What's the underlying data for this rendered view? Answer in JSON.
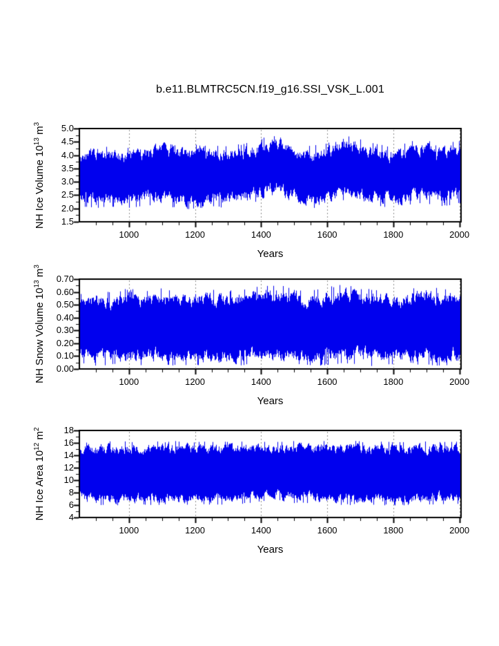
{
  "title": "b.e11.BLMTRC5CN.f19_g16.SSI_VSK_L.001",
  "background": "#ffffff",
  "series_color": "#0000ee",
  "grid_color": "#8a8a8a",
  "chart_data": [
    {
      "type": "line",
      "name": "nh-ice-volume",
      "ylabel": "NH Ice Volume 10^13 m^3",
      "ylabel_parts": {
        "base1": "NH Ice Volume 10",
        "sup1": "13",
        "base2": " m",
        "sup2": "3"
      },
      "xlabel": "Years",
      "xlim": [
        850,
        2005
      ],
      "ylim": [
        1.5,
        5.0
      ],
      "xticks": [
        "1000",
        "1200",
        "1400",
        "1600",
        "1800",
        "2000"
      ],
      "yticks": [
        "1.5",
        "2.0",
        "2.5",
        "3.0",
        "3.5",
        "4.0",
        "4.5",
        "5.0"
      ],
      "x_minor_step": 50,
      "y_minor_step": 0.25,
      "grid": "vertical-dashed",
      "envelope_x_min_max": [
        [
          850,
          2.05,
          4.35
        ],
        [
          900,
          2.0,
          4.45
        ],
        [
          950,
          2.05,
          4.3
        ],
        [
          1000,
          2.0,
          4.3
        ],
        [
          1050,
          2.1,
          4.4
        ],
        [
          1100,
          2.1,
          4.55
        ],
        [
          1150,
          2.0,
          4.35
        ],
        [
          1200,
          1.95,
          4.4
        ],
        [
          1250,
          2.05,
          4.4
        ],
        [
          1300,
          2.0,
          4.35
        ],
        [
          1350,
          2.1,
          4.45
        ],
        [
          1400,
          2.3,
          4.6
        ],
        [
          1440,
          2.5,
          4.95
        ],
        [
          1470,
          2.3,
          4.7
        ],
        [
          1500,
          2.1,
          4.4
        ],
        [
          1550,
          2.0,
          4.35
        ],
        [
          1600,
          2.0,
          4.45
        ],
        [
          1640,
          2.3,
          4.8
        ],
        [
          1680,
          2.25,
          4.7
        ],
        [
          1720,
          2.1,
          4.5
        ],
        [
          1760,
          2.05,
          4.4
        ],
        [
          1800,
          2.0,
          4.35
        ],
        [
          1850,
          2.1,
          4.5
        ],
        [
          1890,
          2.2,
          4.7
        ],
        [
          1930,
          2.05,
          4.4
        ],
        [
          1970,
          2.1,
          4.5
        ],
        [
          2005,
          2.2,
          4.55
        ]
      ]
    },
    {
      "type": "line",
      "name": "nh-snow-volume",
      "ylabel": "NH Snow Volume 10^13 m^3",
      "ylabel_parts": {
        "base1": "NH Snow Volume 10",
        "sup1": "13",
        "base2": " m",
        "sup2": "3"
      },
      "xlabel": "Years",
      "xlim": [
        850,
        2005
      ],
      "ylim": [
        0.0,
        0.7
      ],
      "xticks": [
        "1000",
        "1200",
        "1400",
        "1600",
        "1800",
        "2000"
      ],
      "yticks": [
        "0.00",
        "0.10",
        "0.20",
        "0.30",
        "0.40",
        "0.50",
        "0.60",
        "0.70"
      ],
      "x_minor_step": 50,
      "y_minor_step": 0.05,
      "grid": "vertical-dashed",
      "envelope_x_min_max": [
        [
          850,
          0.04,
          0.58
        ],
        [
          900,
          0.02,
          0.62
        ],
        [
          950,
          0.03,
          0.6
        ],
        [
          1000,
          0.02,
          0.63
        ],
        [
          1050,
          0.03,
          0.61
        ],
        [
          1100,
          0.02,
          0.64
        ],
        [
          1150,
          0.03,
          0.6
        ],
        [
          1200,
          0.02,
          0.63
        ],
        [
          1250,
          0.03,
          0.62
        ],
        [
          1300,
          0.02,
          0.61
        ],
        [
          1350,
          0.03,
          0.63
        ],
        [
          1400,
          0.02,
          0.65
        ],
        [
          1450,
          0.04,
          0.66
        ],
        [
          1500,
          0.03,
          0.62
        ],
        [
          1550,
          0.02,
          0.61
        ],
        [
          1600,
          0.03,
          0.64
        ],
        [
          1650,
          0.04,
          0.66
        ],
        [
          1700,
          0.03,
          0.63
        ],
        [
          1750,
          0.02,
          0.62
        ],
        [
          1800,
          0.03,
          0.61
        ],
        [
          1850,
          0.02,
          0.63
        ],
        [
          1900,
          0.03,
          0.65
        ],
        [
          1950,
          0.02,
          0.62
        ],
        [
          2005,
          0.03,
          0.63
        ]
      ]
    },
    {
      "type": "line",
      "name": "nh-ice-area",
      "ylabel": "NH Ice Area 10^12 m^2",
      "ylabel_parts": {
        "base1": "NH Ice Area 10",
        "sup1": "12",
        "base2": " m",
        "sup2": "2"
      },
      "xlabel": "Years",
      "xlim": [
        850,
        2005
      ],
      "ylim": [
        4,
        18
      ],
      "xticks": [
        "1000",
        "1200",
        "1400",
        "1600",
        "1800",
        "2000"
      ],
      "yticks": [
        "4",
        "6",
        "8",
        "10",
        "12",
        "14",
        "16",
        "18"
      ],
      "x_minor_step": 50,
      "y_minor_step": 1,
      "grid": "vertical-dashed",
      "envelope_x_min_max": [
        [
          850,
          6.0,
          16.2
        ],
        [
          950,
          5.8,
          16.3
        ],
        [
          1050,
          6.0,
          16.2
        ],
        [
          1150,
          5.9,
          16.3
        ],
        [
          1250,
          6.0,
          16.2
        ],
        [
          1350,
          6.2,
          16.3
        ],
        [
          1430,
          6.8,
          16.2
        ],
        [
          1500,
          6.3,
          16.3
        ],
        [
          1600,
          5.9,
          16.4
        ],
        [
          1700,
          6.0,
          16.3
        ],
        [
          1800,
          5.9,
          16.2
        ],
        [
          1900,
          6.0,
          16.3
        ],
        [
          2005,
          6.2,
          16.2
        ]
      ]
    }
  ]
}
